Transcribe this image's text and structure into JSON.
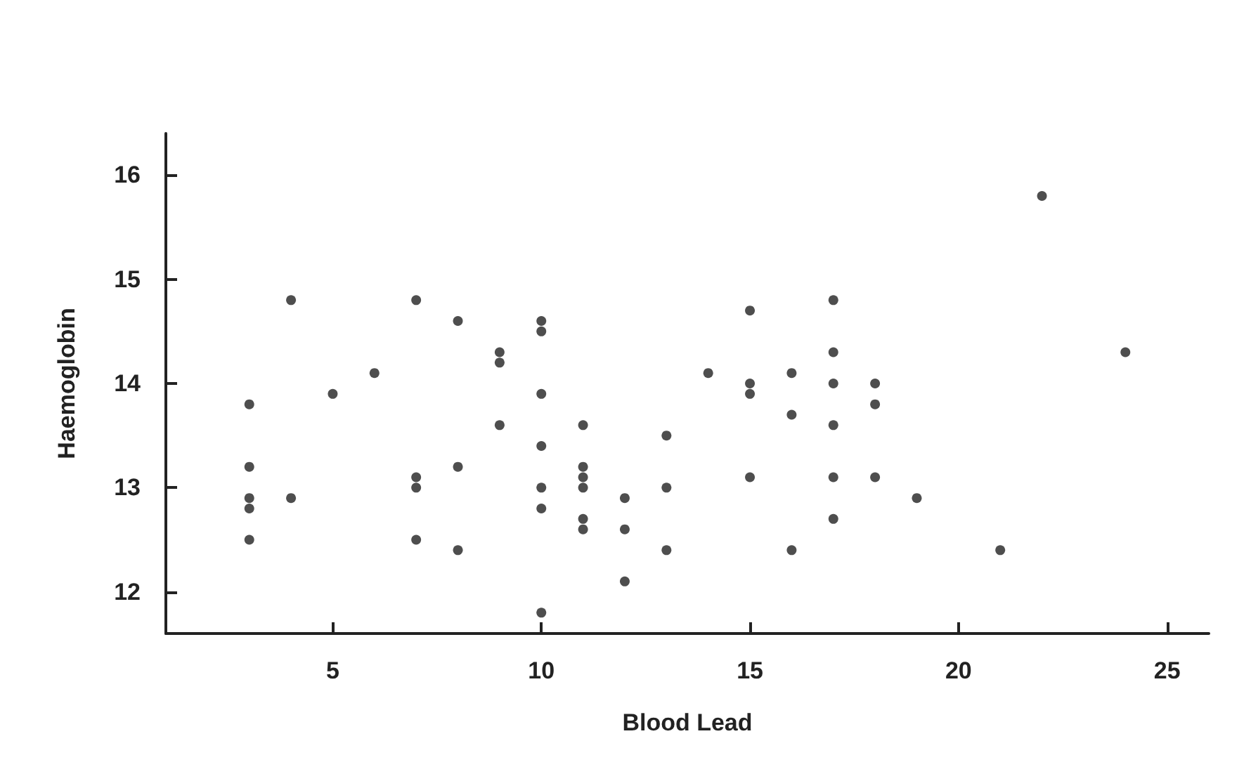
{
  "chart_data": {
    "type": "scatter",
    "xlabel": "Blood Lead",
    "ylabel": "Haemoglobin",
    "x": [
      3,
      3,
      3,
      3,
      3,
      4,
      4,
      5,
      6,
      7,
      7,
      7,
      7,
      8,
      8,
      8,
      9,
      9,
      9,
      10,
      10,
      10,
      10,
      10,
      10,
      10,
      11,
      11,
      11,
      11,
      11,
      11,
      12,
      12,
      12,
      13,
      13,
      13,
      14,
      15,
      15,
      15,
      15,
      16,
      16,
      16,
      17,
      17,
      17,
      17,
      17,
      17,
      18,
      18,
      18,
      19,
      21,
      22,
      24
    ],
    "series": [
      {
        "color": "#222222",
        "values": [
          13.8,
          13.2,
          12.9,
          12.8,
          12.5,
          14.8,
          12.9,
          13.9,
          14.1,
          14.8,
          13.1,
          13.0,
          12.5,
          14.6,
          13.2,
          12.4,
          14.3,
          14.2,
          13.6,
          14.6,
          14.5,
          13.9,
          13.4,
          13.0,
          12.8,
          11.8,
          13.6,
          13.2,
          13.1,
          13.0,
          12.7,
          12.6,
          12.9,
          12.6,
          12.1,
          13.5,
          13.0,
          12.4,
          14.1,
          14.7,
          14.0,
          13.9,
          13.1,
          14.1,
          13.7,
          12.4,
          14.8,
          14.3,
          14.0,
          13.6,
          13.1,
          12.7,
          14.0,
          13.8,
          13.1,
          12.9,
          12.4,
          15.8,
          14.3
        ]
      }
    ],
    "xlim": [
      1,
      26
    ],
    "xticks": [
      5,
      10,
      15,
      20,
      25
    ],
    "ylim": [
      11.6,
      16.4
    ],
    "yticks": [
      12,
      13,
      14,
      15,
      16
    ],
    "grid": false,
    "marker": "circle"
  }
}
